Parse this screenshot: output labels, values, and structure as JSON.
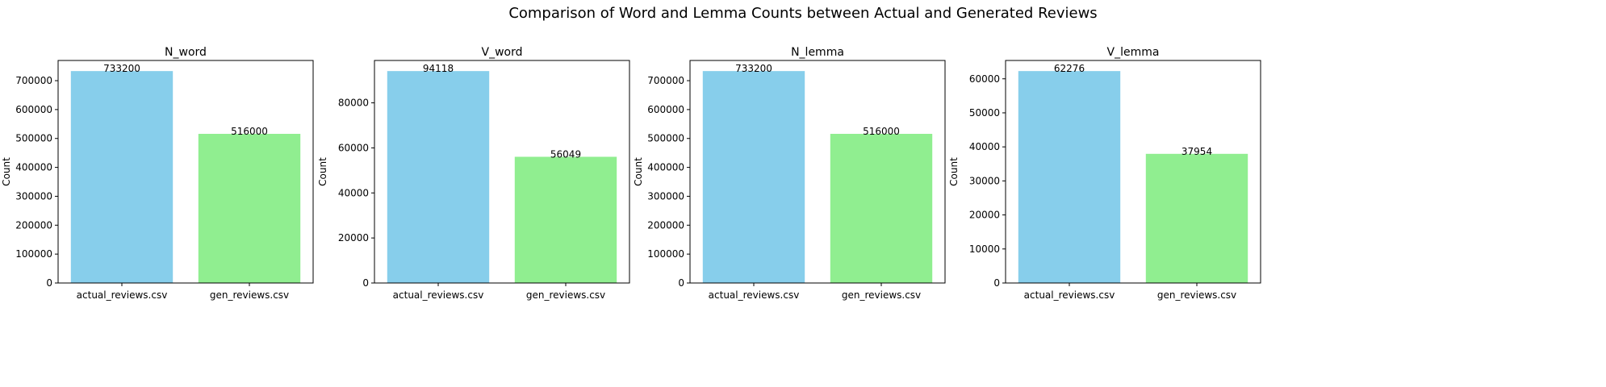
{
  "figure": {
    "title": "Comparison of Word and Lemma Counts between Actual and Generated Reviews"
  },
  "chart_data": [
    {
      "type": "bar",
      "title": "N_word",
      "xlabel": "",
      "ylabel": "Count",
      "categories": [
        "actual_reviews.csv",
        "gen_reviews.csv"
      ],
      "values": [
        733200,
        516000
      ],
      "value_labels": [
        "733200",
        "516000"
      ],
      "colors": [
        "#87CEEB",
        "#90EE90"
      ],
      "ylim": [
        0,
        769860
      ],
      "yticks": [
        0,
        100000,
        200000,
        300000,
        400000,
        500000,
        600000,
        700000
      ],
      "ytick_labels": [
        "0",
        "100000",
        "200000",
        "300000",
        "400000",
        "500000",
        "600000",
        "700000"
      ],
      "grid": false
    },
    {
      "type": "bar",
      "title": "V_word",
      "xlabel": "",
      "ylabel": "Count",
      "categories": [
        "actual_reviews.csv",
        "gen_reviews.csv"
      ],
      "values": [
        94118,
        56049
      ],
      "value_labels": [
        "94118",
        "56049"
      ],
      "colors": [
        "#87CEEB",
        "#90EE90"
      ],
      "ylim": [
        0,
        98824
      ],
      "yticks": [
        0,
        20000,
        40000,
        60000,
        80000
      ],
      "ytick_labels": [
        "0",
        "20000",
        "40000",
        "60000",
        "80000"
      ],
      "grid": false
    },
    {
      "type": "bar",
      "title": "N_lemma",
      "xlabel": "",
      "ylabel": "Count",
      "categories": [
        "actual_reviews.csv",
        "gen_reviews.csv"
      ],
      "values": [
        733200,
        516000
      ],
      "value_labels": [
        "733200",
        "516000"
      ],
      "colors": [
        "#87CEEB",
        "#90EE90"
      ],
      "ylim": [
        0,
        769860
      ],
      "yticks": [
        0,
        100000,
        200000,
        300000,
        400000,
        500000,
        600000,
        700000
      ],
      "ytick_labels": [
        "0",
        "100000",
        "200000",
        "300000",
        "400000",
        "500000",
        "600000",
        "700000"
      ],
      "grid": false
    },
    {
      "type": "bar",
      "title": "V_lemma",
      "xlabel": "",
      "ylabel": "Count",
      "categories": [
        "actual_reviews.csv",
        "gen_reviews.csv"
      ],
      "values": [
        62276,
        37954
      ],
      "value_labels": [
        "62276",
        "37954"
      ],
      "colors": [
        "#87CEEB",
        "#90EE90"
      ],
      "ylim": [
        0,
        65390
      ],
      "yticks": [
        0,
        10000,
        20000,
        30000,
        40000,
        50000,
        60000
      ],
      "ytick_labels": [
        "0",
        "10000",
        "20000",
        "30000",
        "40000",
        "50000",
        "60000"
      ],
      "grid": false
    }
  ]
}
